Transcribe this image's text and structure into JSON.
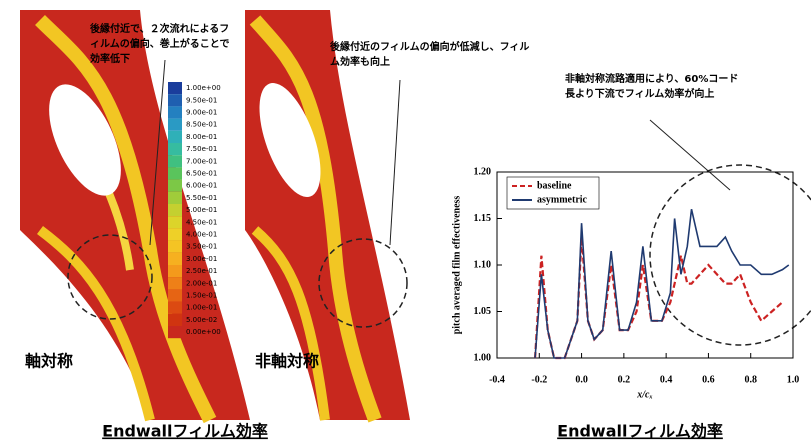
{
  "annotations": [
    "後縁付近で、２次流れによるフィルムの偏向、巻上がることで効率低下",
    "後縁付近のフィルムの偏向が低減し、フィルム効率も向上",
    "非軸対称流路適用により、60%コード長より下流でフィルム効率が向上"
  ],
  "colorbar_labels": [
    "1.00e+00",
    "9.50e-01",
    "9.00e-01",
    "8.50e-01",
    "8.00e-01",
    "7.50e-01",
    "7.00e-01",
    "6.50e-01",
    "6.00e-01",
    "5.50e-01",
    "5.00e-01",
    "4.50e-01",
    "4.00e-01",
    "3.50e-01",
    "3.00e-01",
    "2.50e-01",
    "2.00e-01",
    "1.50e-01",
    "1.00e-01",
    "5.00e-02",
    "0.00e+00"
  ],
  "panel_labels": [
    "軸対称",
    "非軸対称"
  ],
  "captions": [
    "Endwallフィルム効率",
    "Endwallフィルム効率"
  ],
  "chart_data": {
    "type": "line",
    "x_label": "x/cₓ",
    "y_label": "pitch averaged film effectiveness",
    "x": [
      -0.22,
      -0.19,
      -0.16,
      -0.13,
      -0.08,
      -0.02,
      0.0,
      0.03,
      0.06,
      0.1,
      0.14,
      0.18,
      0.22,
      0.26,
      0.29,
      0.33,
      0.38,
      0.42,
      0.44,
      0.47,
      0.5,
      0.52,
      0.56,
      0.6,
      0.64,
      0.68,
      0.71,
      0.75,
      0.8,
      0.85,
      0.9,
      0.95,
      0.98
    ],
    "series": [
      {
        "name": "baseline",
        "color": "#cc2222",
        "dash": true,
        "values": [
          1.0,
          1.11,
          1.03,
          1.0,
          1.0,
          1.04,
          1.13,
          1.04,
          1.02,
          1.03,
          1.1,
          1.03,
          1.03,
          1.05,
          1.1,
          1.04,
          1.04,
          1.06,
          1.08,
          1.11,
          1.08,
          1.08,
          1.09,
          1.1,
          1.09,
          1.08,
          1.08,
          1.09,
          1.06,
          1.04,
          1.05,
          1.06,
          null
        ]
      },
      {
        "name": "asymmetric",
        "color": "#1f3a70",
        "dash": false,
        "values": [
          1.0,
          1.09,
          1.03,
          1.0,
          1.0,
          1.04,
          1.145,
          1.04,
          1.02,
          1.03,
          1.115,
          1.03,
          1.03,
          1.06,
          1.12,
          1.04,
          1.04,
          1.07,
          1.15,
          1.09,
          1.12,
          1.16,
          1.12,
          1.12,
          1.12,
          1.13,
          1.115,
          1.1,
          1.1,
          1.09,
          1.09,
          1.095,
          1.1
        ]
      }
    ],
    "xlim": [
      -0.4,
      1.0
    ],
    "xticks": [
      -0.4,
      -0.2,
      {
        "value": 0,
        "label": "0.0"
      },
      0.2,
      0.4,
      0.6,
      0.8,
      {
        "value": 1,
        "label": "1.0"
      }
    ],
    "ylim": [
      1.0,
      1.2
    ],
    "yticks": [
      {
        "value": 1,
        "label": "1.00"
      },
      1.05,
      {
        "value": 1.1,
        "label": "1.10"
      },
      1.15,
      {
        "value": 1.2,
        "label": "1.20"
      }
    ],
    "legend": "upper left"
  }
}
